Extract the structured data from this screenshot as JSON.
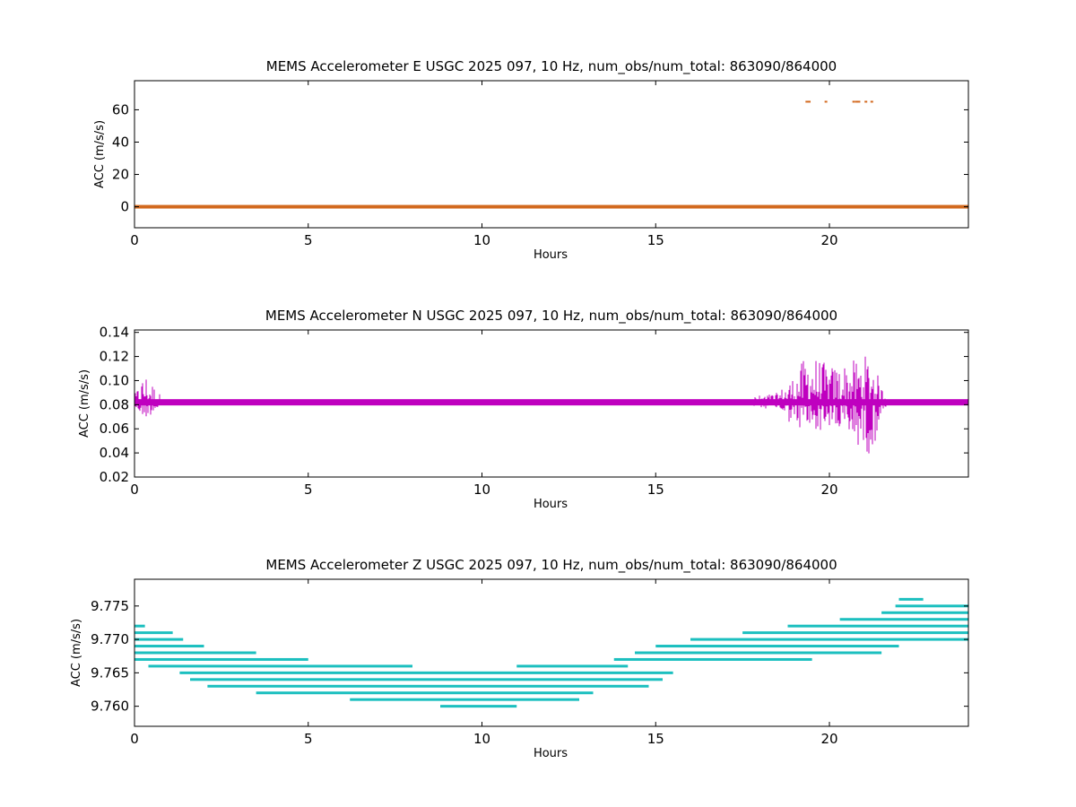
{
  "colors": {
    "e": "#d2691e",
    "n": "#bf00bf",
    "z": "#1bbfbf"
  },
  "chart_data": [
    {
      "type": "scatter",
      "title": "MEMS Accelerometer E USGC 2025 097, 10 Hz, num_obs/num_total: 863090/864000",
      "xlabel": "Hours",
      "ylabel": "ACC (m/s/s)",
      "xlim": [
        0,
        24
      ],
      "ylim": [
        -13,
        78
      ],
      "xticks": [
        0,
        5,
        10,
        15,
        20
      ],
      "yticks": [
        0,
        20,
        40,
        60
      ],
      "ytick_labels": [
        "0",
        "20",
        "40",
        "60"
      ],
      "baseline": 0,
      "outliers": [
        {
          "x": 19.35,
          "y": 65
        },
        {
          "x": 19.42,
          "y": 65
        },
        {
          "x": 19.9,
          "y": 65
        },
        {
          "x": 20.7,
          "y": 65
        },
        {
          "x": 20.78,
          "y": 65
        },
        {
          "x": 20.85,
          "y": 65
        },
        {
          "x": 21.05,
          "y": 65
        },
        {
          "x": 21.22,
          "y": 65
        }
      ],
      "grid": false
    },
    {
      "type": "scatter",
      "title": "MEMS Accelerometer N USGC 2025 097, 10 Hz, num_obs/num_total: 863090/864000",
      "xlabel": "Hours",
      "ylabel": "ACC (m/s/s)",
      "xlim": [
        0,
        24
      ],
      "ylim": [
        0.02,
        0.142
      ],
      "xticks": [
        0,
        5,
        10,
        15,
        20
      ],
      "yticks": [
        0.02,
        0.04,
        0.06,
        0.08,
        0.1,
        0.12,
        0.14
      ],
      "ytick_labels": [
        "0.02",
        "0.04",
        "0.06",
        "0.08",
        "0.10",
        "0.12",
        "0.14"
      ],
      "baseline": 0.082,
      "spread": [
        {
          "x": 0.0,
          "lo": 0.076,
          "hi": 0.088
        },
        {
          "x": 0.3,
          "lo": 0.068,
          "hi": 0.107
        },
        {
          "x": 0.8,
          "lo": 0.078,
          "hi": 0.086
        },
        {
          "x": 1.2,
          "lo": 0.08,
          "hi": 0.084
        },
        {
          "x": 17.0,
          "lo": 0.08,
          "hi": 0.084
        },
        {
          "x": 18.5,
          "lo": 0.076,
          "hi": 0.09
        },
        {
          "x": 19.0,
          "lo": 0.06,
          "hi": 0.105
        },
        {
          "x": 19.4,
          "lo": 0.056,
          "hi": 0.125
        },
        {
          "x": 20.0,
          "lo": 0.06,
          "hi": 0.112
        },
        {
          "x": 20.6,
          "lo": 0.05,
          "hi": 0.116
        },
        {
          "x": 21.2,
          "lo": 0.037,
          "hi": 0.123
        },
        {
          "x": 21.5,
          "lo": 0.07,
          "hi": 0.095
        },
        {
          "x": 21.7,
          "lo": 0.078,
          "hi": 0.084
        },
        {
          "x": 24.0,
          "lo": 0.078,
          "hi": 0.084
        }
      ],
      "grid": false
    },
    {
      "type": "scatter",
      "title": "MEMS Accelerometer Z USGC 2025 097, 10 Hz, num_obs/num_total: 863090/864000",
      "xlabel": "Hours",
      "ylabel": "ACC (m/s/s)",
      "xlim": [
        0,
        24
      ],
      "ylim": [
        9.757,
        9.779
      ],
      "xticks": [
        0,
        5,
        10,
        15,
        20
      ],
      "yticks": [
        9.76,
        9.765,
        9.77,
        9.775
      ],
      "ytick_labels": [
        "9.760",
        "9.765",
        "9.770",
        "9.775"
      ],
      "quantized_levels": [
        {
          "y": 9.772,
          "x0": 0.0,
          "x1": 0.3
        },
        {
          "y": 9.771,
          "x0": 0.0,
          "x1": 1.1
        },
        {
          "y": 9.77,
          "x0": 0.0,
          "x1": 1.4
        },
        {
          "y": 9.769,
          "x0": 0.0,
          "x1": 2.0
        },
        {
          "y": 9.768,
          "x0": 0.0,
          "x1": 3.5
        },
        {
          "y": 9.767,
          "x0": 0.0,
          "x1": 5.0
        },
        {
          "y": 9.766,
          "x0": 0.4,
          "x1": 8.0
        },
        {
          "y": 9.765,
          "x0": 1.3,
          "x1": 15.5
        },
        {
          "y": 9.764,
          "x0": 1.6,
          "x1": 15.2
        },
        {
          "y": 9.763,
          "x0": 2.1,
          "x1": 14.8
        },
        {
          "y": 9.762,
          "x0": 3.5,
          "x1": 13.2
        },
        {
          "y": 9.761,
          "x0": 6.2,
          "x1": 12.8
        },
        {
          "y": 9.76,
          "x0": 8.8,
          "x1": 11.0
        },
        {
          "y": 9.766,
          "x0": 11.0,
          "x1": 14.2
        },
        {
          "y": 9.767,
          "x0": 13.8,
          "x1": 19.5
        },
        {
          "y": 9.768,
          "x0": 14.4,
          "x1": 21.5
        },
        {
          "y": 9.769,
          "x0": 15.0,
          "x1": 22.0
        },
        {
          "y": 9.77,
          "x0": 16.0,
          "x1": 24.0
        },
        {
          "y": 9.771,
          "x0": 17.5,
          "x1": 24.0
        },
        {
          "y": 9.772,
          "x0": 18.8,
          "x1": 24.0
        },
        {
          "y": 9.773,
          "x0": 20.3,
          "x1": 24.0
        },
        {
          "y": 9.774,
          "x0": 21.5,
          "x1": 24.0
        },
        {
          "y": 9.775,
          "x0": 21.9,
          "x1": 24.0
        },
        {
          "y": 9.776,
          "x0": 22.0,
          "x1": 22.7
        }
      ],
      "grid": false
    }
  ]
}
